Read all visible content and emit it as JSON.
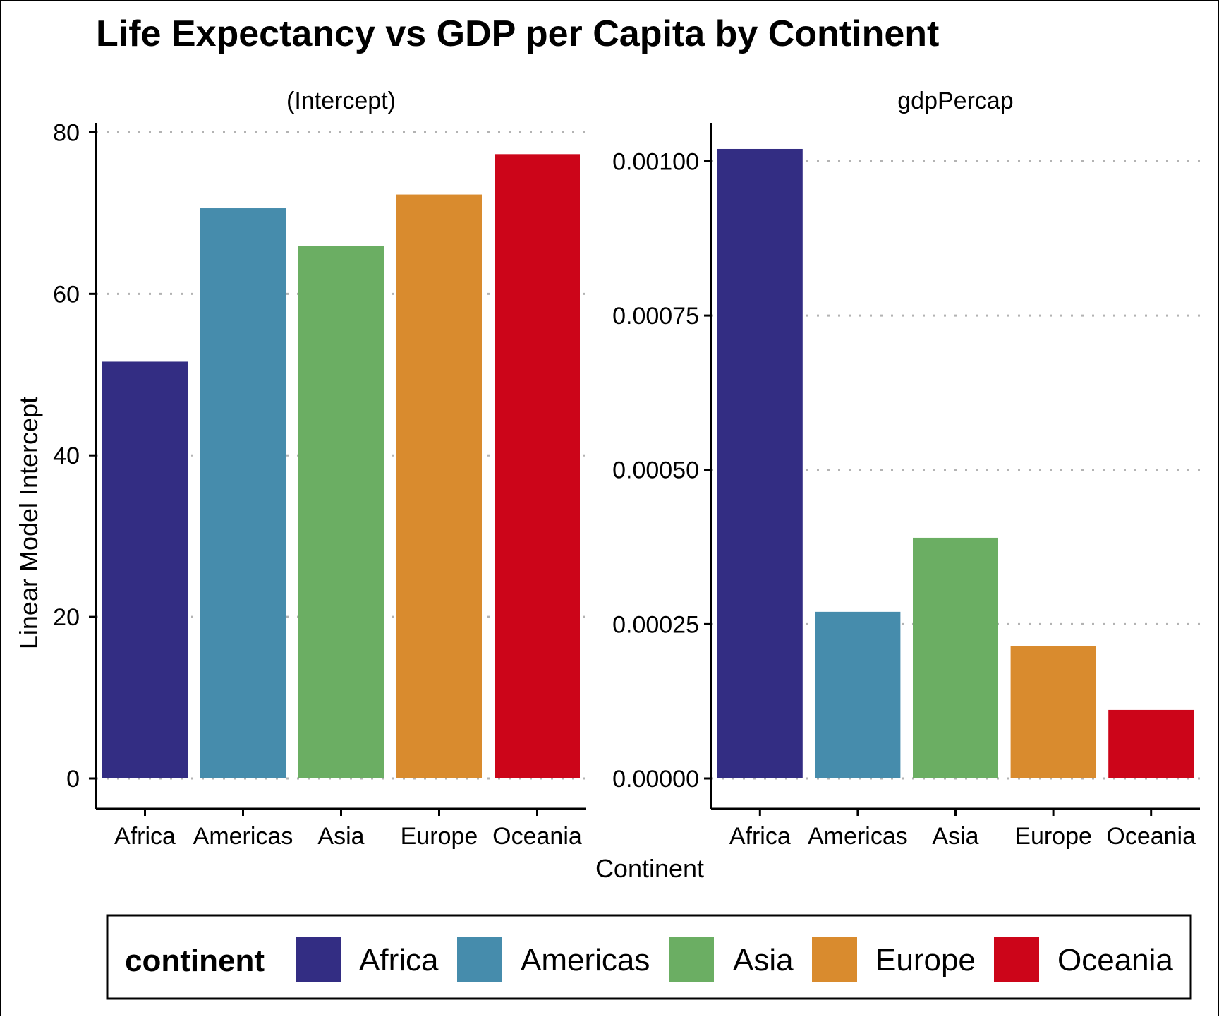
{
  "chart_data": {
    "type": "bar",
    "title": "Life Expectancy vs GDP per Capita by Continent",
    "xlabel": "Continent",
    "ylabel": "Linear Model Intercept",
    "categories": [
      "Africa",
      "Americas",
      "Asia",
      "Europe",
      "Oceania"
    ],
    "colors": {
      "Africa": "#332D83",
      "Americas": "#468CAC",
      "Asia": "#6BAE63",
      "Europe": "#D98B2E",
      "Oceania": "#CC0519"
    },
    "grid": "horizontal dotted",
    "legend": {
      "title": "continent",
      "position": "bottom",
      "entries": [
        "Africa",
        "Americas",
        "Asia",
        "Europe",
        "Oceania"
      ]
    },
    "panels": [
      {
        "strip": "(Intercept)",
        "values": [
          51.6,
          70.6,
          65.9,
          72.3,
          77.3
        ],
        "ylim": [
          0,
          81
        ],
        "yticks": [
          0,
          20,
          40,
          60,
          80
        ],
        "ytick_labels": [
          "0",
          "20",
          "40",
          "60",
          "80"
        ]
      },
      {
        "strip": "gdpPercap",
        "values": [
          0.00102,
          0.00027,
          0.00039,
          0.000214,
          0.000111
        ],
        "ylim": [
          0,
          0.00106
        ],
        "yticks": [
          0,
          0.00025,
          0.0005,
          0.00075,
          0.001
        ],
        "ytick_labels": [
          "0.00000",
          "0.00025",
          "0.00050",
          "0.00075",
          "0.00100"
        ]
      }
    ]
  }
}
